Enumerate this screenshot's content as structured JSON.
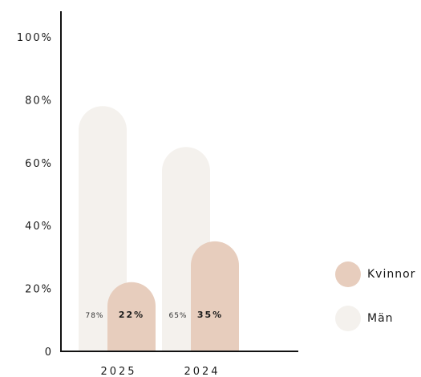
{
  "chart_data": {
    "type": "bar",
    "categories": [
      "2025",
      "2024"
    ],
    "series": [
      {
        "name": "Män",
        "values": [
          78,
          65
        ],
        "labels": [
          "78%",
          "65%"
        ],
        "color": "#f4f1ed"
      },
      {
        "name": "Kvinnor",
        "values": [
          22,
          35
        ],
        "labels": [
          "22%",
          "35%"
        ],
        "color": "#e7cdbd"
      }
    ],
    "y_ticks": [
      "0",
      "20%",
      "40%",
      "60%",
      "80%",
      "100%"
    ],
    "ylim": [
      0,
      100
    ],
    "legend_position": "right",
    "grid": false
  }
}
